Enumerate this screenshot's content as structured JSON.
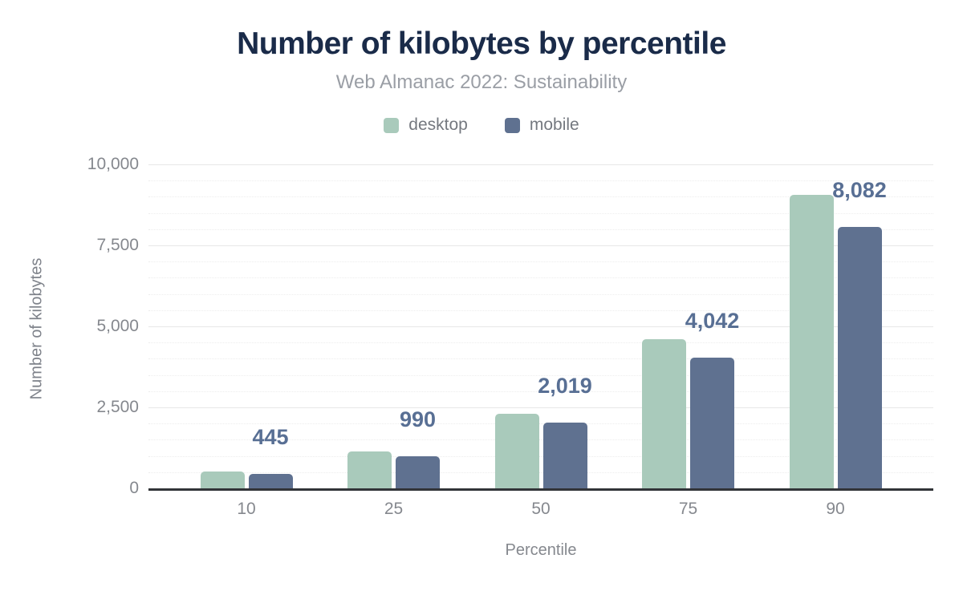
{
  "header": {
    "title": "Number of kilobytes by percentile",
    "subtitle": "Web Almanac 2022: Sustainability"
  },
  "colors": {
    "title_text": "#1a2b49",
    "subtitle_text": "#9a9ea5",
    "tick_text": "#85888e",
    "data_label_text": "#586f94",
    "axis_line": "#323438",
    "major_gridline": "#e7e7e7",
    "minor_gridline": "#ededed",
    "desktop_series": "#a9cabb",
    "mobile_series": "#5f7190"
  },
  "chart_data": {
    "type": "bar",
    "title": "Number of kilobytes by percentile",
    "subtitle": "Web Almanac 2022: Sustainability",
    "categories": [
      "10",
      "25",
      "50",
      "75",
      "90"
    ],
    "series": [
      {
        "name": "desktop",
        "color": "#a9cabb",
        "values": [
          510,
          1150,
          2305,
          4615,
          9060
        ]
      },
      {
        "name": "mobile",
        "color": "#5f7190",
        "values": [
          445,
          990,
          2019,
          4042,
          8082
        ],
        "data_labels": [
          "445",
          "990",
          "2,019",
          "4,042",
          "8,082"
        ]
      }
    ],
    "data_labels_on": "mobile",
    "xlabel": "Percentile",
    "ylabel": "Number of kilobytes",
    "ylim": [
      0,
      10000
    ],
    "yticks": [
      0,
      2500,
      5000,
      7500,
      10000
    ],
    "ytick_labels": [
      "0",
      "2,500",
      "5,000",
      "7,500",
      "10,000"
    ],
    "minor_grid_step": 500,
    "grid": true,
    "legend_position": "top"
  }
}
